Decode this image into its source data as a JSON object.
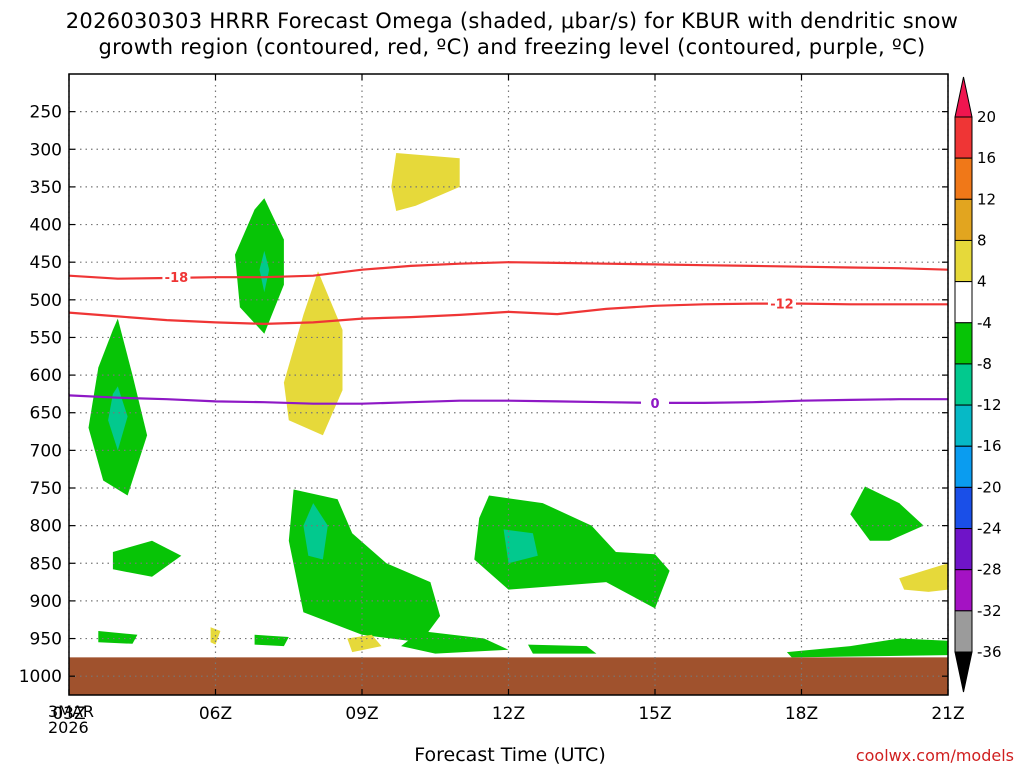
{
  "chart_data": {
    "type": "contour",
    "title_line1": "2026030303 HRRR Forecast Omega (shaded, μbar/s) for KBUR with dendritic snow",
    "title_line2": "growth region (contoured, red, ºC) and freezing level (contoured, purple, ºC)",
    "xlabel": "Forecast Time (UTC)",
    "ylabel": "",
    "x_ticks": [
      "03Z",
      "06Z",
      "09Z",
      "12Z",
      "15Z",
      "18Z",
      "21Z"
    ],
    "x_range_hours": [
      3,
      21
    ],
    "start_date": [
      "3MAR",
      "2026"
    ],
    "y_ticks": [
      250,
      300,
      350,
      400,
      450,
      500,
      550,
      600,
      650,
      700,
      750,
      800,
      850,
      900,
      950,
      1000
    ],
    "y_range_hpa": [
      200,
      1025
    ],
    "colorbar_ticks": [
      "20",
      "16",
      "12",
      "8",
      "4",
      "-4",
      "-8",
      "-12",
      "-16",
      "-20",
      "-24",
      "-28",
      "-32",
      "-36"
    ],
    "colorbar_colors": [
      "#f0154f",
      "#ef3535",
      "#f07818",
      "#e2a51f",
      "#e6d93a",
      "#ffffff",
      "#07c406",
      "#02c98e",
      "#06b9c6",
      "#0a9cf0",
      "#1a4fe8",
      "#6f14c8",
      "#a412c3",
      "#9b9b9b",
      "#000000"
    ],
    "contours": [
      {
        "name": "dendritic growth -18C",
        "color": "#ef3535",
        "label": "-18",
        "x": [
          3,
          4,
          5,
          6,
          7,
          8,
          9,
          10,
          11,
          12,
          13,
          14,
          15,
          16,
          17,
          18,
          19,
          20,
          21
        ],
        "y": [
          468,
          472,
          471,
          470,
          470,
          468,
          460,
          455,
          452,
          450,
          451,
          452,
          453,
          454,
          455,
          456,
          457,
          458,
          460
        ]
      },
      {
        "name": "dendritic growth -12C",
        "color": "#ef3535",
        "label": "-12",
        "x": [
          3,
          4,
          5,
          6,
          7,
          8,
          9,
          10,
          11,
          12,
          13,
          14,
          15,
          16,
          17,
          18,
          19,
          20,
          21
        ],
        "y": [
          517,
          522,
          527,
          530,
          532,
          530,
          525,
          523,
          520,
          516,
          519,
          512,
          508,
          506,
          505,
          505,
          506,
          506,
          506
        ]
      },
      {
        "name": "freezing level 0C",
        "color": "#8e18c5",
        "label": "0",
        "x": [
          3,
          4,
          5,
          6,
          7,
          8,
          9,
          10,
          11,
          12,
          13,
          14,
          15,
          16,
          17,
          18,
          19,
          20,
          21
        ],
        "y": [
          627,
          630,
          632,
          635,
          636,
          638,
          638,
          636,
          634,
          634,
          635,
          636,
          637,
          637,
          636,
          634,
          633,
          632,
          632
        ]
      }
    ],
    "labeled_points": [
      {
        "text": "-18",
        "x": 5.2,
        "y": 470,
        "color": "#ef3535"
      },
      {
        "text": "-12",
        "x": 17.6,
        "y": 505,
        "color": "#ef3535"
      },
      {
        "text": "0",
        "x": 15.0,
        "y": 637,
        "color": "#8e18c5"
      }
    ],
    "omega_regions": [
      {
        "value_band": "-8 to -4",
        "color": "#07c406",
        "points": [
          [
            4.0,
            525
          ],
          [
            4.3,
            600
          ],
          [
            4.6,
            680
          ],
          [
            4.2,
            760
          ],
          [
            3.7,
            740
          ],
          [
            3.4,
            670
          ],
          [
            3.6,
            590
          ],
          [
            3.9,
            540
          ]
        ]
      },
      {
        "value_band": "-12 to -8",
        "color": "#02c98e",
        "points": [
          [
            4.0,
            615
          ],
          [
            4.2,
            655
          ],
          [
            4.0,
            700
          ],
          [
            3.8,
            660
          ],
          [
            3.9,
            625
          ]
        ]
      },
      {
        "value_band": "-8 to -4",
        "color": "#07c406",
        "points": [
          [
            7.0,
            365
          ],
          [
            7.4,
            420
          ],
          [
            7.4,
            480
          ],
          [
            7.0,
            545
          ],
          [
            6.5,
            510
          ],
          [
            6.4,
            440
          ],
          [
            6.8,
            380
          ]
        ]
      },
      {
        "value_band": "-12 to -8",
        "color": "#02c98e",
        "points": [
          [
            7.0,
            435
          ],
          [
            7.1,
            460
          ],
          [
            7.0,
            490
          ],
          [
            6.9,
            460
          ]
        ]
      },
      {
        "value_band": "4 to 8",
        "color": "#e6d93a",
        "points": [
          [
            8.1,
            462
          ],
          [
            8.6,
            540
          ],
          [
            8.6,
            620
          ],
          [
            8.2,
            680
          ],
          [
            7.5,
            660
          ],
          [
            7.4,
            610
          ],
          [
            7.8,
            520
          ]
        ]
      },
      {
        "value_band": "4 to 8",
        "color": "#e6d93a",
        "points": [
          [
            9.7,
            305
          ],
          [
            11.0,
            312
          ],
          [
            11.0,
            350
          ],
          [
            10.1,
            375
          ],
          [
            9.7,
            382
          ],
          [
            9.6,
            350
          ]
        ]
      },
      {
        "value_band": "-8 to -4",
        "color": "#07c406",
        "points": [
          [
            7.6,
            752
          ],
          [
            8.5,
            765
          ],
          [
            8.8,
            810
          ],
          [
            9.5,
            850
          ],
          [
            10.4,
            875
          ],
          [
            10.6,
            920
          ],
          [
            10.2,
            955
          ],
          [
            9.0,
            945
          ],
          [
            7.8,
            915
          ],
          [
            7.5,
            820
          ]
        ]
      },
      {
        "value_band": "-12 to -8",
        "color": "#02c98e",
        "points": [
          [
            8.0,
            770
          ],
          [
            8.3,
            800
          ],
          [
            8.2,
            845
          ],
          [
            7.9,
            840
          ],
          [
            7.8,
            800
          ]
        ]
      },
      {
        "value_band": "-8 to -4",
        "color": "#07c406",
        "points": [
          [
            11.6,
            760
          ],
          [
            12.7,
            770
          ],
          [
            13.7,
            800
          ],
          [
            14.2,
            835
          ],
          [
            15.0,
            838
          ],
          [
            15.3,
            860
          ],
          [
            15.0,
            910
          ],
          [
            14.0,
            875
          ],
          [
            12.0,
            885
          ],
          [
            11.3,
            845
          ],
          [
            11.4,
            790
          ]
        ]
      },
      {
        "value_band": "-12 to -8",
        "color": "#02c98e",
        "points": [
          [
            11.9,
            805
          ],
          [
            12.5,
            810
          ],
          [
            12.6,
            840
          ],
          [
            12.0,
            850
          ]
        ]
      },
      {
        "value_band": "-8 to -4",
        "color": "#07c406",
        "points": [
          [
            3.9,
            835
          ],
          [
            4.7,
            820
          ],
          [
            5.3,
            840
          ],
          [
            4.7,
            868
          ],
          [
            3.9,
            858
          ]
        ]
      },
      {
        "value_band": "-8 to -4",
        "color": "#07c406",
        "points": [
          [
            19.3,
            748
          ],
          [
            20.0,
            770
          ],
          [
            20.5,
            800
          ],
          [
            19.8,
            820
          ],
          [
            19.4,
            820
          ],
          [
            19.0,
            785
          ]
        ]
      },
      {
        "value_band": "4 to 8",
        "color": "#e6d93a",
        "points": [
          [
            20.0,
            870
          ],
          [
            21.0,
            850
          ],
          [
            21.0,
            885
          ],
          [
            20.6,
            888
          ],
          [
            20.1,
            885
          ]
        ]
      },
      {
        "value_band": "-8 to -4",
        "color": "#07c406",
        "points": [
          [
            3.6,
            940
          ],
          [
            4.4,
            945
          ],
          [
            4.3,
            957
          ],
          [
            3.6,
            955
          ]
        ]
      },
      {
        "value_band": "-8 to -4",
        "color": "#07c406",
        "points": [
          [
            6.8,
            945
          ],
          [
            7.5,
            948
          ],
          [
            7.4,
            960
          ],
          [
            6.8,
            958
          ]
        ]
      },
      {
        "value_band": "-8 to -4",
        "color": "#07c406",
        "points": [
          [
            10.2,
            940
          ],
          [
            11.5,
            950
          ],
          [
            12.0,
            965
          ],
          [
            10.5,
            970
          ],
          [
            9.8,
            960
          ]
        ]
      },
      {
        "value_band": "-8 to -4",
        "color": "#07c406",
        "points": [
          [
            12.4,
            958
          ],
          [
            13.6,
            960
          ],
          [
            13.8,
            970
          ],
          [
            12.5,
            970
          ]
        ]
      },
      {
        "value_band": "-8 to -4",
        "color": "#07c406",
        "points": [
          [
            17.7,
            968
          ],
          [
            19.0,
            960
          ],
          [
            20.0,
            950
          ],
          [
            21.0,
            953
          ],
          [
            21.0,
            972
          ],
          [
            17.8,
            975
          ]
        ]
      },
      {
        "value_band": "4 to 8",
        "color": "#e6d93a",
        "points": [
          [
            5.9,
            935
          ],
          [
            6.1,
            940
          ],
          [
            6.0,
            958
          ],
          [
            5.9,
            955
          ]
        ]
      },
      {
        "value_band": "4 to 8",
        "color": "#e6d93a",
        "points": [
          [
            8.7,
            950
          ],
          [
            9.2,
            945
          ],
          [
            9.4,
            960
          ],
          [
            8.8,
            968
          ]
        ]
      }
    ],
    "terrain_top_hpa": 975,
    "terrain_color": "#a0522d"
  },
  "credit": "coolwx.com/models"
}
